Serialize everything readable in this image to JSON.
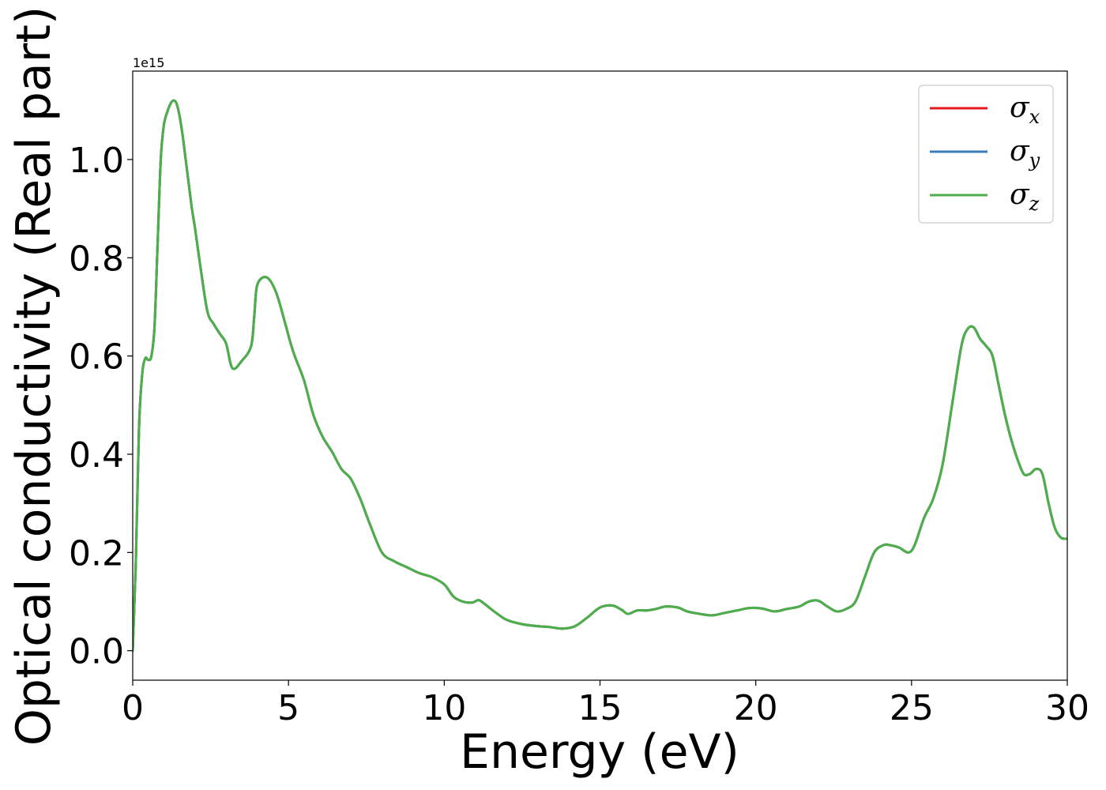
{
  "chart_data": {
    "type": "line",
    "title": "",
    "xlabel": "Energy (eV)",
    "ylabel": "Optical conductivity (Real part)",
    "y_offset_text": "1e15",
    "y_scale": 1000000000000000.0,
    "xlim": [
      0,
      30
    ],
    "ylim": [
      -0.06,
      1.18
    ],
    "x_ticks": [
      0,
      5,
      10,
      15,
      20,
      25,
      30
    ],
    "x_tick_labels": [
      "0",
      "5",
      "10",
      "15",
      "20",
      "25",
      "30"
    ],
    "y_ticks": [
      0.0,
      0.2,
      0.4,
      0.6,
      0.8,
      1.0
    ],
    "y_tick_labels": [
      "0.0",
      "0.2",
      "0.4",
      "0.6",
      "0.8",
      "1.0"
    ],
    "grid": false,
    "legend_position": "top-right",
    "legend": [
      {
        "symbol": "σ",
        "sub": "x",
        "color": "#e41a1c"
      },
      {
        "symbol": "σ",
        "sub": "y",
        "color": "#377eb8"
      },
      {
        "symbol": "σ",
        "sub": "z",
        "color": "#4daf4a"
      }
    ],
    "x": [
      0,
      0.1,
      0.2,
      0.3,
      0.4,
      0.5,
      0.6,
      0.7,
      0.8,
      0.9,
      1.0,
      1.1,
      1.2,
      1.3,
      1.4,
      1.5,
      1.6,
      1.7,
      1.8,
      1.9,
      2.0,
      2.2,
      2.4,
      2.6,
      2.8,
      3.0,
      3.2,
      3.5,
      3.8,
      3.9,
      4.0,
      4.3,
      4.6,
      4.9,
      5.05,
      5.2,
      5.5,
      5.8,
      6.1,
      6.4,
      6.7,
      7.0,
      7.3,
      7.6,
      8.0,
      8.4,
      8.8,
      9.2,
      9.6,
      10.0,
      10.3,
      10.6,
      10.9,
      11.1,
      11.3,
      11.6,
      12.0,
      12.5,
      13.0,
      13.4,
      13.8,
      14.2,
      14.6,
      15.0,
      15.4,
      15.7,
      15.9,
      16.2,
      16.5,
      16.8,
      17.1,
      17.5,
      17.8,
      18.2,
      18.6,
      19.0,
      19.4,
      19.8,
      20.2,
      20.6,
      21.0,
      21.4,
      21.7,
      22.0,
      22.3,
      22.6,
      22.9,
      23.2,
      23.5,
      23.8,
      24.1,
      24.3,
      24.6,
      24.9,
      25.1,
      25.4,
      25.7,
      26.0,
      26.3,
      26.6,
      26.8,
      27.0,
      27.2,
      27.4,
      27.6,
      27.8,
      28.0,
      28.2,
      28.4,
      28.6,
      28.8,
      29.0,
      29.2,
      29.4,
      29.6,
      29.8,
      30.0
    ],
    "series": [
      {
        "name": "σx",
        "color": "#e41a1c",
        "values": [
          0.0,
          0.18,
          0.45,
          0.56,
          0.595,
          0.592,
          0.6,
          0.66,
          0.83,
          1.0,
          1.07,
          1.095,
          1.112,
          1.12,
          1.115,
          1.09,
          1.05,
          1.0,
          0.95,
          0.9,
          0.86,
          0.77,
          0.69,
          0.665,
          0.645,
          0.625,
          0.575,
          0.59,
          0.62,
          0.68,
          0.745,
          0.76,
          0.73,
          0.665,
          0.63,
          0.6,
          0.55,
          0.48,
          0.435,
          0.405,
          0.37,
          0.35,
          0.31,
          0.26,
          0.2,
          0.182,
          0.17,
          0.158,
          0.15,
          0.135,
          0.11,
          0.1,
          0.098,
          0.103,
          0.095,
          0.08,
          0.063,
          0.054,
          0.05,
          0.048,
          0.045,
          0.05,
          0.068,
          0.088,
          0.092,
          0.083,
          0.075,
          0.082,
          0.082,
          0.085,
          0.09,
          0.088,
          0.08,
          0.075,
          0.072,
          0.077,
          0.082,
          0.087,
          0.086,
          0.08,
          0.085,
          0.09,
          0.1,
          0.102,
          0.09,
          0.08,
          0.085,
          0.1,
          0.15,
          0.2,
          0.215,
          0.215,
          0.21,
          0.2,
          0.215,
          0.27,
          0.31,
          0.38,
          0.5,
          0.62,
          0.655,
          0.658,
          0.635,
          0.62,
          0.6,
          0.54,
          0.48,
          0.43,
          0.39,
          0.36,
          0.36,
          0.37,
          0.36,
          0.3,
          0.25,
          0.23,
          0.228
        ]
      },
      {
        "name": "σy",
        "color": "#377eb8",
        "values": [
          0.0,
          0.18,
          0.45,
          0.56,
          0.595,
          0.592,
          0.6,
          0.66,
          0.83,
          1.0,
          1.07,
          1.095,
          1.112,
          1.12,
          1.115,
          1.09,
          1.05,
          1.0,
          0.95,
          0.9,
          0.86,
          0.77,
          0.69,
          0.665,
          0.645,
          0.625,
          0.575,
          0.59,
          0.62,
          0.68,
          0.745,
          0.76,
          0.73,
          0.665,
          0.63,
          0.6,
          0.55,
          0.48,
          0.435,
          0.405,
          0.37,
          0.35,
          0.31,
          0.26,
          0.2,
          0.182,
          0.17,
          0.158,
          0.15,
          0.135,
          0.11,
          0.1,
          0.098,
          0.103,
          0.095,
          0.08,
          0.063,
          0.054,
          0.05,
          0.048,
          0.045,
          0.05,
          0.068,
          0.088,
          0.092,
          0.083,
          0.075,
          0.082,
          0.082,
          0.085,
          0.09,
          0.088,
          0.08,
          0.075,
          0.072,
          0.077,
          0.082,
          0.087,
          0.086,
          0.08,
          0.085,
          0.09,
          0.1,
          0.102,
          0.09,
          0.08,
          0.085,
          0.1,
          0.15,
          0.2,
          0.215,
          0.215,
          0.21,
          0.2,
          0.215,
          0.27,
          0.31,
          0.38,
          0.5,
          0.62,
          0.655,
          0.658,
          0.635,
          0.62,
          0.6,
          0.54,
          0.48,
          0.43,
          0.39,
          0.36,
          0.36,
          0.37,
          0.36,
          0.3,
          0.25,
          0.23,
          0.228
        ]
      },
      {
        "name": "σz",
        "color": "#4daf4a",
        "values": [
          0.0,
          0.18,
          0.45,
          0.56,
          0.595,
          0.592,
          0.6,
          0.66,
          0.83,
          1.0,
          1.07,
          1.095,
          1.112,
          1.12,
          1.115,
          1.09,
          1.05,
          1.0,
          0.95,
          0.9,
          0.86,
          0.77,
          0.69,
          0.665,
          0.645,
          0.625,
          0.575,
          0.59,
          0.62,
          0.68,
          0.745,
          0.76,
          0.73,
          0.665,
          0.63,
          0.6,
          0.55,
          0.48,
          0.435,
          0.405,
          0.37,
          0.35,
          0.31,
          0.26,
          0.2,
          0.182,
          0.17,
          0.158,
          0.15,
          0.135,
          0.11,
          0.1,
          0.098,
          0.103,
          0.095,
          0.08,
          0.063,
          0.054,
          0.05,
          0.048,
          0.045,
          0.05,
          0.068,
          0.088,
          0.092,
          0.083,
          0.075,
          0.082,
          0.082,
          0.085,
          0.09,
          0.088,
          0.08,
          0.075,
          0.072,
          0.077,
          0.082,
          0.087,
          0.086,
          0.08,
          0.085,
          0.09,
          0.1,
          0.102,
          0.09,
          0.08,
          0.085,
          0.1,
          0.15,
          0.2,
          0.215,
          0.215,
          0.21,
          0.2,
          0.215,
          0.27,
          0.31,
          0.38,
          0.5,
          0.62,
          0.655,
          0.658,
          0.635,
          0.62,
          0.6,
          0.54,
          0.48,
          0.43,
          0.39,
          0.36,
          0.36,
          0.37,
          0.36,
          0.3,
          0.25,
          0.23,
          0.228
        ]
      }
    ]
  }
}
